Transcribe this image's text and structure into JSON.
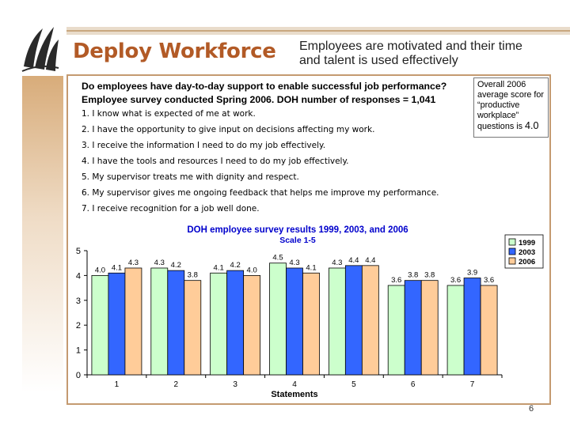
{
  "slide": {
    "title": "Deploy Workforce",
    "subtitle": "Employees are motivated and their time and talent is used effectively",
    "question_line1": "Do employees have day-to-day support to enable successful job performance?",
    "question_line2": "Employee survey conducted Spring 2006.  DOH number of responses = 1,041",
    "statements": [
      "1. I know what is expected of me at work.",
      "2. I have the opportunity to give input on decisions affecting my work.",
      "3. I receive the information I need to do my job effectively.",
      "4. I have the tools and resources I need to do my job effectively.",
      "5. My supervisor treats me with dignity and respect.",
      "6. My supervisor gives me ongoing feedback that helps me improve my performance.",
      "7. I receive recognition for a job well done."
    ],
    "callout_text": "Overall 2006 average score for “productive workplace” questions is ",
    "callout_value": "4.0",
    "page_number": "6"
  },
  "chart_data": {
    "type": "bar",
    "title": "DOH employee survey results 1999, 2003, and 2006",
    "subtitle": "Scale 1-5",
    "xlabel": "Statements",
    "ylabel": "",
    "categories": [
      "1",
      "2",
      "3",
      "4",
      "5",
      "6",
      "7"
    ],
    "ylim": [
      0,
      5
    ],
    "yticks": [
      "0",
      "1",
      "2",
      "3",
      "4",
      "5"
    ],
    "grid": false,
    "legend_position": "top-right",
    "series": [
      {
        "name": "1999",
        "color": "#ccffcc",
        "values": [
          4.0,
          4.3,
          4.1,
          4.5,
          4.3,
          3.6,
          3.6
        ],
        "labels": [
          "4.0",
          "4.3",
          "4.1",
          "4.5",
          "4.3",
          "3.6",
          "3.6"
        ]
      },
      {
        "name": "2003",
        "color": "#3366ff",
        "values": [
          4.1,
          4.2,
          4.2,
          4.3,
          4.4,
          3.8,
          3.9
        ],
        "labels": [
          "4.1",
          "4.2",
          "4.2",
          "4.3",
          "4.4",
          "3.8",
          "3.9"
        ]
      },
      {
        "name": "2006",
        "color": "#ffcc99",
        "values": [
          4.3,
          3.8,
          4.0,
          4.1,
          4.4,
          3.8,
          3.6
        ],
        "labels": [
          "4.3",
          "3.8",
          "4.0",
          "4.1",
          "4.4",
          "3.8",
          "3.6"
        ]
      }
    ]
  }
}
